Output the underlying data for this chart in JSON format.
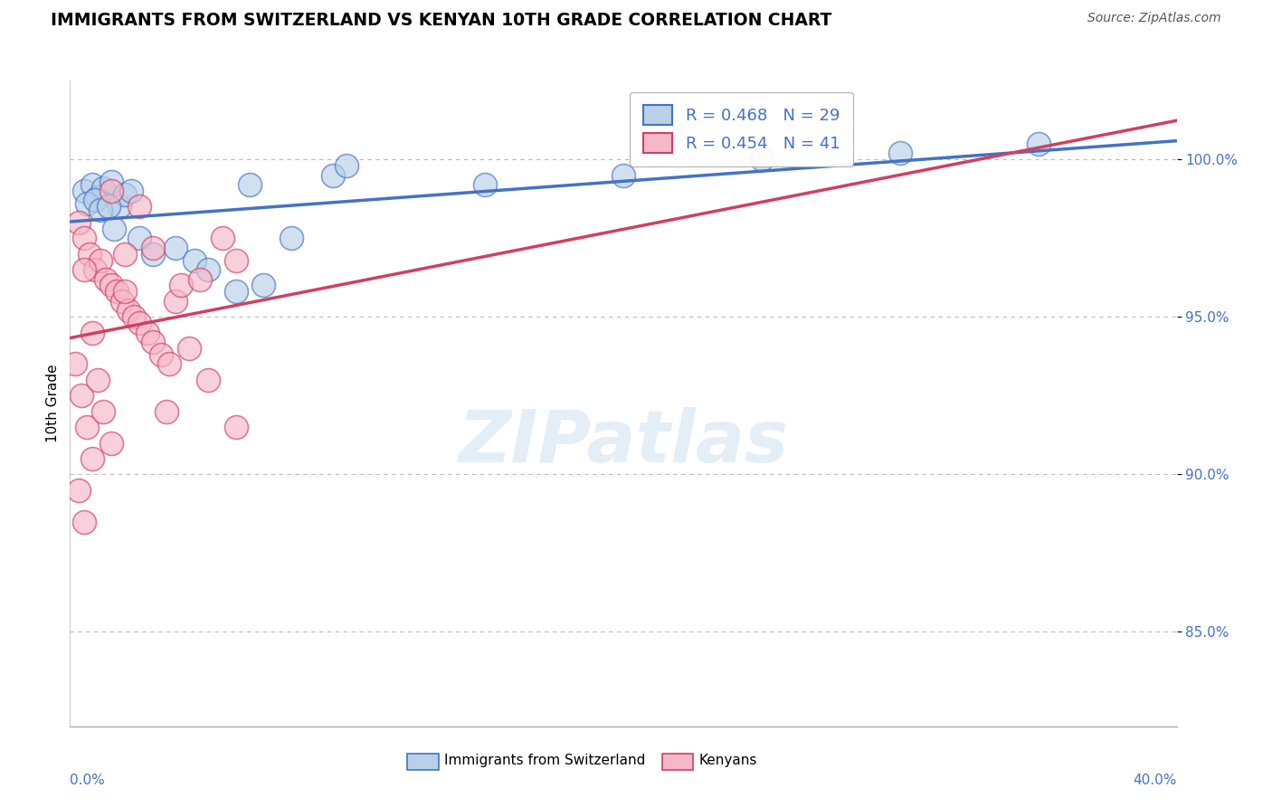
{
  "title": "IMMIGRANTS FROM SWITZERLAND VS KENYAN 10TH GRADE CORRELATION CHART",
  "source": "Source: ZipAtlas.com",
  "ylabel": "10th Grade",
  "legend_blue_r": "R = 0.468",
  "legend_blue_n": "N = 29",
  "legend_pink_r": "R = 0.454",
  "legend_pink_n": "N = 41",
  "ytick_vals": [
    85.0,
    90.0,
    95.0,
    100.0
  ],
  "ytick_labels": [
    "85.0%",
    "90.0%",
    "95.0%",
    "100.0%"
  ],
  "xlim": [
    0.0,
    40.0
  ],
  "ylim": [
    82.0,
    102.5
  ],
  "blue_face": "#b8d0e8",
  "pink_face": "#f5b8c8",
  "trend_blue": "#4472c4",
  "trend_pink": "#d04060",
  "grid_color": "#bbbbbb",
  "bg_color": "#ffffff",
  "title_fontsize": 13.5,
  "tick_color": "#4472c4",
  "tick_fontsize": 11,
  "legend_fontsize": 13,
  "source_fontsize": 10,
  "blue_x": [
    0.5,
    0.8,
    1.0,
    1.2,
    1.5,
    1.8,
    2.0,
    2.2,
    0.6,
    0.9,
    1.1,
    1.4,
    1.6,
    2.5,
    3.0,
    3.8,
    4.5,
    5.0,
    6.0,
    7.0,
    8.0,
    9.5,
    10.0,
    15.0,
    20.0,
    25.0,
    30.0,
    35.0,
    6.5
  ],
  "blue_y": [
    99.0,
    99.2,
    98.8,
    99.1,
    99.3,
    98.5,
    98.9,
    99.0,
    98.6,
    98.7,
    98.4,
    98.5,
    97.8,
    97.5,
    97.0,
    97.2,
    96.8,
    96.5,
    95.8,
    96.0,
    97.5,
    99.5,
    99.8,
    99.2,
    99.5,
    100.0,
    100.2,
    100.5,
    99.2
  ],
  "pink_x": [
    0.3,
    0.5,
    0.7,
    0.9,
    1.1,
    1.3,
    1.5,
    1.7,
    1.9,
    2.1,
    2.3,
    2.5,
    2.8,
    3.0,
    3.3,
    3.6,
    3.8,
    4.0,
    4.3,
    4.7,
    5.0,
    5.5,
    6.0,
    0.2,
    0.4,
    0.6,
    0.8,
    1.0,
    1.2,
    1.5,
    2.0,
    2.5,
    3.0,
    0.3,
    0.5,
    1.5,
    2.0,
    6.0,
    3.5,
    0.8,
    0.5
  ],
  "pink_y": [
    98.0,
    97.5,
    97.0,
    96.5,
    96.8,
    96.2,
    96.0,
    95.8,
    95.5,
    95.2,
    95.0,
    94.8,
    94.5,
    94.2,
    93.8,
    93.5,
    95.5,
    96.0,
    94.0,
    96.2,
    93.0,
    97.5,
    96.8,
    93.5,
    92.5,
    91.5,
    90.5,
    93.0,
    92.0,
    91.0,
    97.0,
    98.5,
    97.2,
    89.5,
    88.5,
    99.0,
    95.8,
    91.5,
    92.0,
    94.5,
    96.5
  ]
}
